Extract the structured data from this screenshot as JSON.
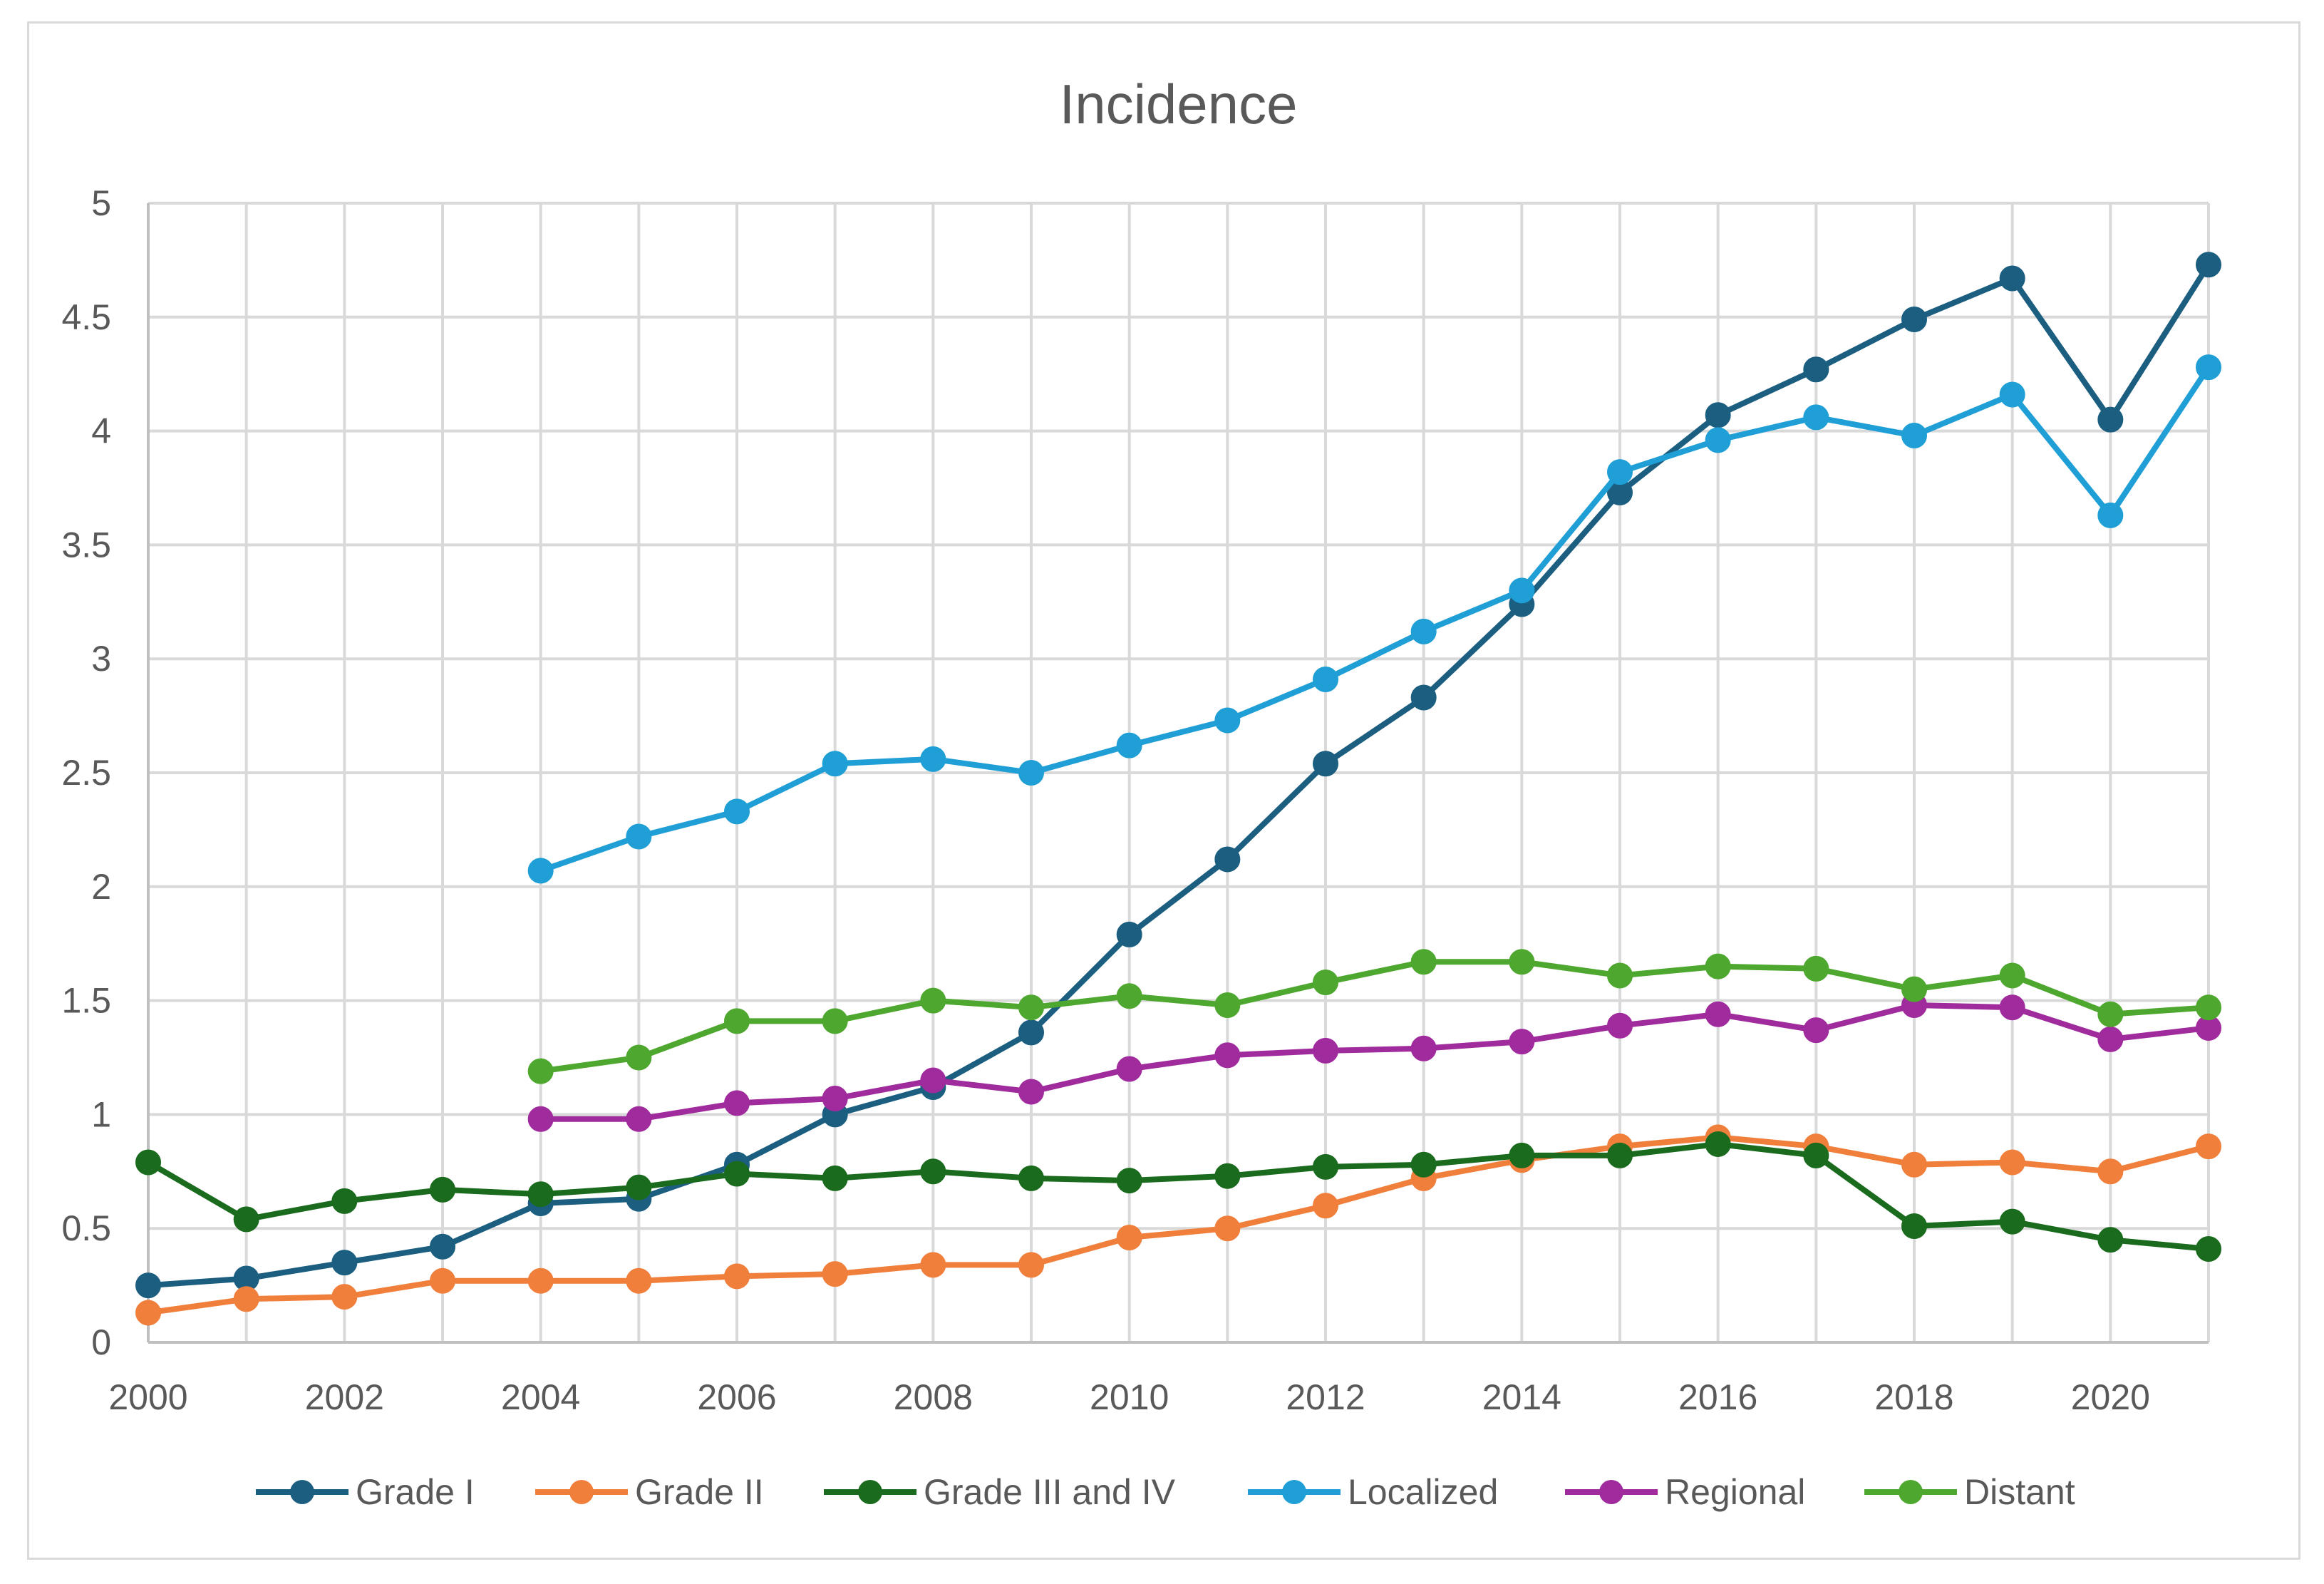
{
  "chart_data": {
    "type": "line",
    "title": "Incidence",
    "xlabel": "",
    "ylabel": "",
    "x": [
      2000,
      2001,
      2002,
      2003,
      2004,
      2005,
      2006,
      2007,
      2008,
      2009,
      2010,
      2011,
      2012,
      2013,
      2014,
      2015,
      2016,
      2017,
      2018,
      2019,
      2020,
      2021
    ],
    "xlim": [
      2000,
      2021
    ],
    "ylim": [
      0,
      5
    ],
    "x_ticks": [
      "2000",
      "2002",
      "2004",
      "2006",
      "2008",
      "2010",
      "2012",
      "2014",
      "2016",
      "2018",
      "2020"
    ],
    "y_ticks": [
      "0",
      "0.5",
      "1",
      "1.5",
      "2",
      "2.5",
      "3",
      "3.5",
      "4",
      "4.5",
      "5"
    ],
    "grid": true,
    "legend_position": "bottom",
    "series": [
      {
        "name": "Grade I",
        "color": "#1b5e80",
        "values": [
          0.25,
          0.28,
          0.35,
          0.42,
          0.61,
          0.63,
          0.78,
          1.0,
          1.12,
          1.36,
          1.79,
          2.12,
          2.54,
          2.83,
          3.24,
          3.73,
          4.07,
          4.27,
          4.49,
          4.67,
          4.05,
          4.73
        ]
      },
      {
        "name": "Grade II",
        "color": "#f07f3c",
        "values": [
          0.13,
          0.19,
          0.2,
          0.27,
          0.27,
          0.27,
          0.29,
          0.3,
          0.34,
          0.34,
          0.46,
          0.5,
          0.6,
          0.72,
          0.8,
          0.86,
          0.9,
          0.86,
          0.78,
          0.79,
          0.75,
          0.86
        ]
      },
      {
        "name": "Grade III and IV",
        "color": "#1a6b1e",
        "values": [
          0.79,
          0.54,
          0.62,
          0.67,
          0.65,
          0.68,
          0.74,
          0.72,
          0.75,
          0.72,
          0.71,
          0.73,
          0.77,
          0.78,
          0.82,
          0.82,
          0.87,
          0.82,
          0.51,
          0.53,
          0.45,
          0.41
        ]
      },
      {
        "name": "Localized",
        "color": "#1f9fd5",
        "values": [
          null,
          null,
          null,
          null,
          2.07,
          2.22,
          2.33,
          2.54,
          2.56,
          2.5,
          2.62,
          2.73,
          2.91,
          3.12,
          3.3,
          3.82,
          3.96,
          4.06,
          3.98,
          4.16,
          3.63,
          4.28
        ]
      },
      {
        "name": "Regional",
        "color": "#a02b9d",
        "values": [
          null,
          null,
          null,
          null,
          0.98,
          0.98,
          1.05,
          1.07,
          1.15,
          1.1,
          1.2,
          1.26,
          1.28,
          1.29,
          1.32,
          1.39,
          1.44,
          1.37,
          1.48,
          1.47,
          1.33,
          1.38
        ]
      },
      {
        "name": "Distant",
        "color": "#4ea72e",
        "values": [
          null,
          null,
          null,
          null,
          1.19,
          1.25,
          1.41,
          1.41,
          1.5,
          1.47,
          1.52,
          1.48,
          1.58,
          1.67,
          1.67,
          1.61,
          1.65,
          1.64,
          1.55,
          1.61,
          1.44,
          1.47
        ]
      }
    ]
  }
}
